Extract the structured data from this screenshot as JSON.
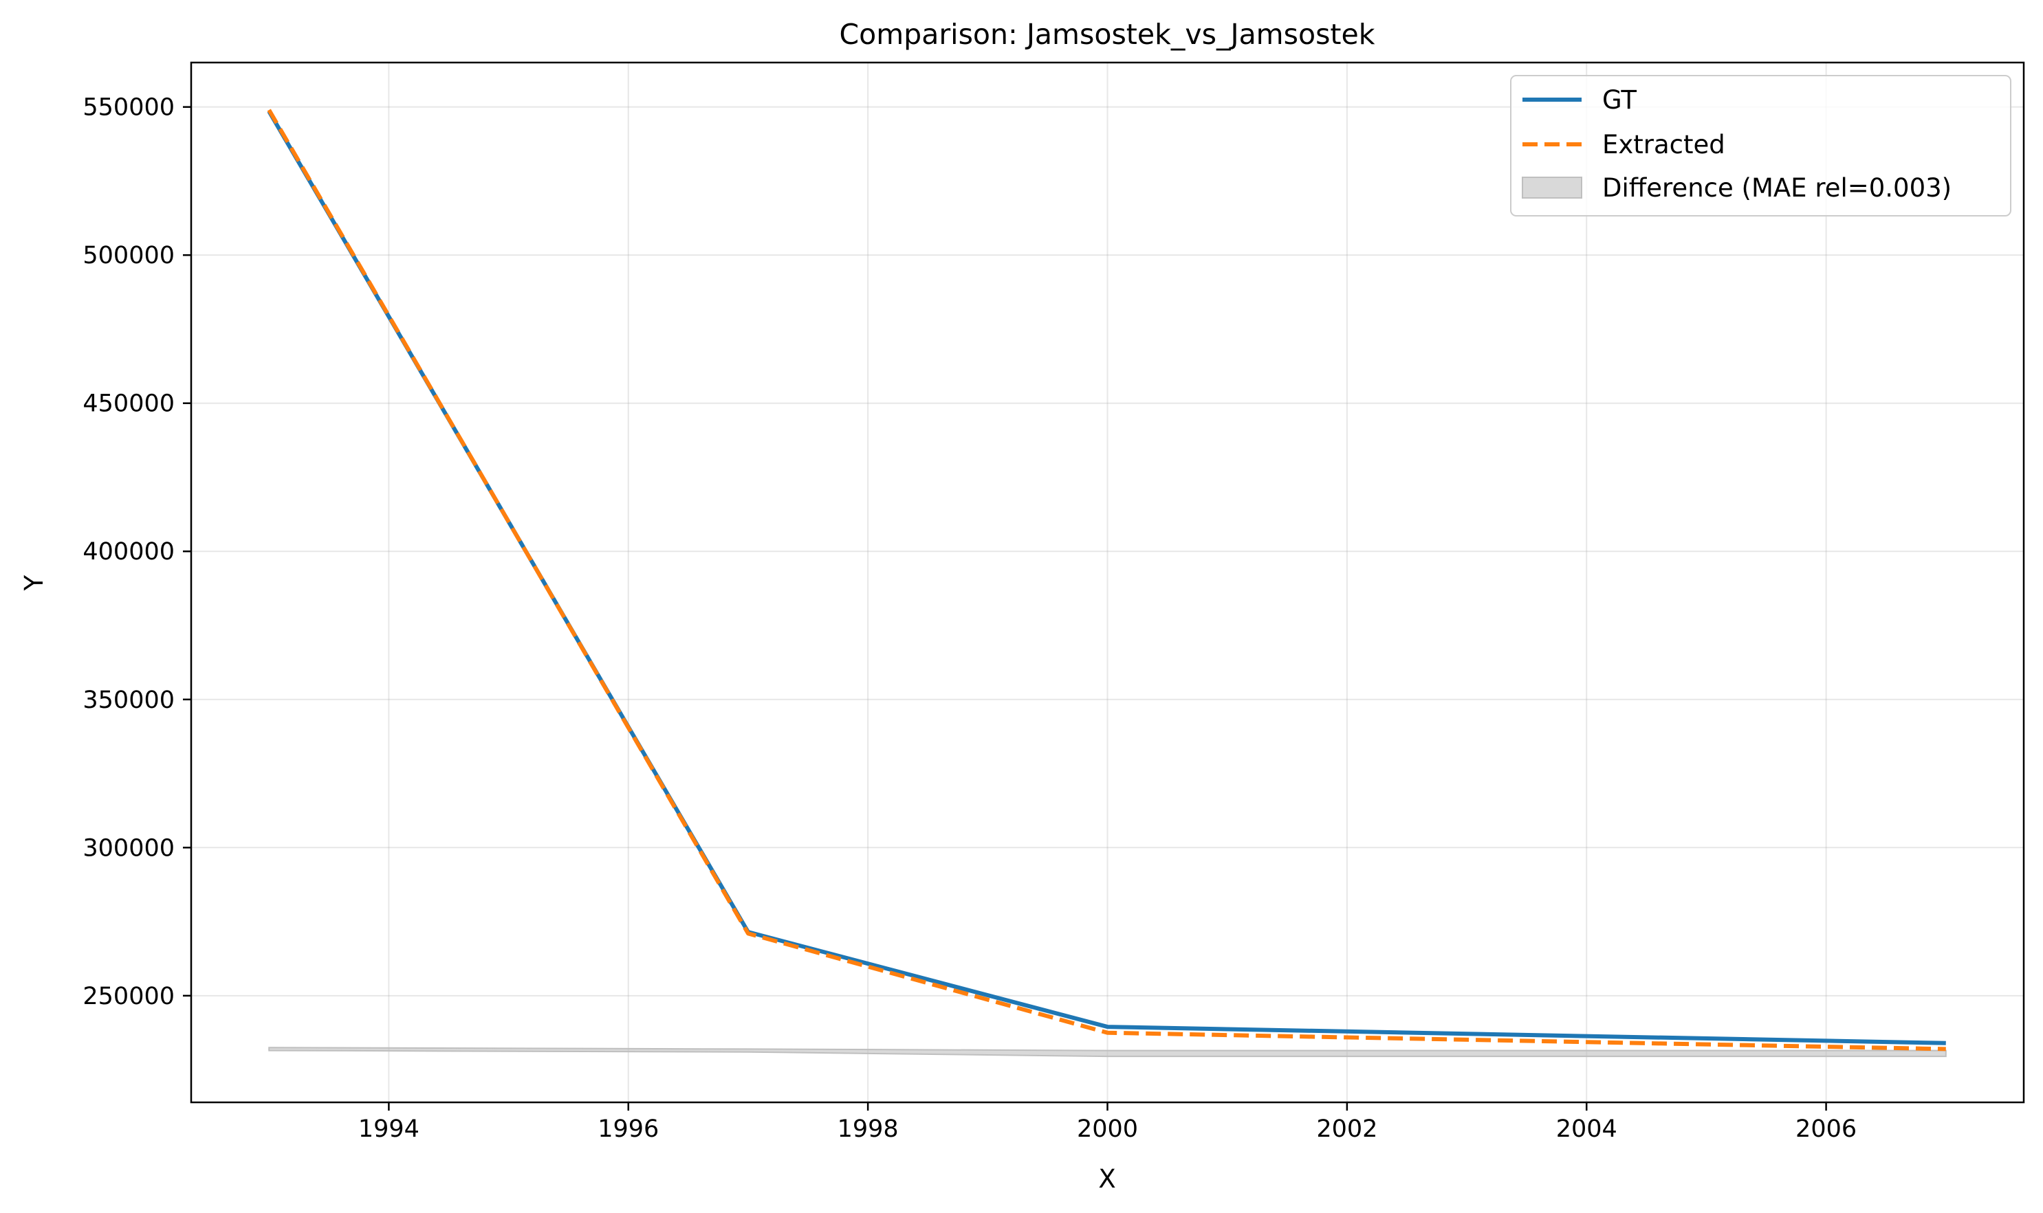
{
  "chart_data": {
    "type": "line",
    "title": "Comparison: Jamsostek_vs_Jamsostek",
    "xlabel": "X",
    "ylabel": "Y",
    "xlim": [
      1992.35,
      2007.65
    ],
    "ylim": [
      214000,
      565000
    ],
    "x_ticks": [
      1994,
      1996,
      1998,
      2000,
      2002,
      2004,
      2006
    ],
    "x_tick_labels": [
      "1994",
      "1996",
      "1998",
      "2000",
      "2002",
      "2004",
      "2006"
    ],
    "y_ticks": [
      250000,
      300000,
      350000,
      400000,
      450000,
      500000,
      550000
    ],
    "y_tick_labels": [
      "250000",
      "300000",
      "350000",
      "400000",
      "450000",
      "500000",
      "550000"
    ],
    "grid": true,
    "legend_position": "top-right",
    "series": [
      {
        "name": "GT",
        "style": "solid",
        "color": "#1f77b4",
        "x": [
          1993,
          1997,
          2000,
          2007
        ],
        "y": [
          548500,
          271500,
          239500,
          234000
        ]
      },
      {
        "name": "Extracted",
        "style": "dashed",
        "color": "#ff7f0e",
        "x": [
          1993,
          1997,
          2000,
          2007
        ],
        "y": [
          549000,
          271000,
          237500,
          232000
        ]
      }
    ],
    "difference_band": {
      "name": "Difference (MAE rel=0.003)",
      "color": "#bfbfbf",
      "x": [
        1993,
        1997,
        2000,
        2007
      ],
      "upper": [
        232500,
        232000,
        231500,
        231500
      ],
      "lower": [
        231500,
        231000,
        229500,
        229500
      ]
    }
  }
}
